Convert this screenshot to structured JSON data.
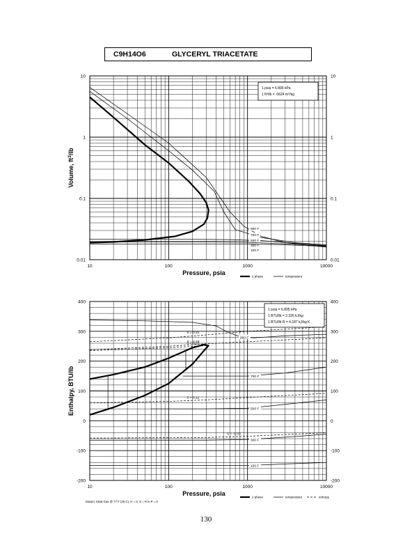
{
  "header": {
    "formula": "C9H14O6",
    "name": "GLYCERYL TRIACETATE"
  },
  "page_number": "130",
  "footer_note": "Datum: Ideal Gas @ 77 F (25 C), H = 0, S = R ln P = 0",
  "chart_data": [
    {
      "type": "line",
      "title": "",
      "xlabel": "Pressure,  psia",
      "ylabel": "Volume, ft^3/lb",
      "xscale": "log",
      "yscale": "log",
      "xlim": [
        10,
        10000
      ],
      "ylim": [
        0.01,
        10
      ],
      "x_ticks": [
        "10",
        "100",
        "1000",
        "10000"
      ],
      "y_ticks": [
        "0.01",
        "0.1",
        "1",
        "10"
      ],
      "grid": true,
      "conversion_box": [
        "1 psia  =  6.895 kPa",
        "1 ft^3/lb  =  .0624 m^3/kg"
      ],
      "legend": {
        "placement": "bottom-right",
        "entries": [
          "2 phase",
          "temperature"
        ]
      },
      "series": [
        {
          "kind": "2 phase",
          "label": "",
          "points": [
            [
              10,
              4.5
            ],
            [
              20,
              2.1
            ],
            [
              50,
              0.75
            ],
            [
              100,
              0.38
            ],
            [
              180,
              0.19
            ],
            [
              250,
              0.12
            ],
            [
              300,
              0.085
            ],
            [
              320,
              0.065
            ],
            [
              310,
              0.048
            ],
            [
              280,
              0.038
            ],
            [
              200,
              0.029
            ],
            [
              120,
              0.024
            ],
            [
              50,
              0.021
            ],
            [
              20,
              0.0195
            ],
            [
              10,
              0.019
            ]
          ]
        },
        {
          "kind": "temperature",
          "label": "900 F",
          "points": [
            [
              10,
              6.5
            ],
            [
              30,
              2.4
            ],
            [
              100,
              0.8
            ],
            [
              300,
              0.22
            ],
            [
              600,
              0.06
            ],
            [
              900,
              0.035
            ],
            [
              1500,
              0.024
            ],
            [
              3000,
              0.019
            ],
            [
              10000,
              0.016
            ]
          ]
        },
        {
          "kind": "temperature",
          "label": "700 F",
          "points": [
            [
              10,
              5.6
            ],
            [
              30,
              2.0
            ],
            [
              100,
              0.6
            ],
            [
              200,
              0.29
            ],
            [
              380,
              0.13
            ],
            [
              500,
              0.06
            ],
            [
              700,
              0.031
            ],
            [
              1500,
              0.023
            ],
            [
              4000,
              0.019
            ],
            [
              10000,
              0.0175
            ]
          ]
        },
        {
          "kind": "temperature",
          "label": "500 F",
          "points": [
            [
              10,
              0.0215
            ],
            [
              200,
              0.0215
            ],
            [
              600,
              0.0213
            ],
            [
              1500,
              0.0205
            ],
            [
              4000,
              0.0185
            ],
            [
              10000,
              0.017
            ]
          ]
        },
        {
          "kind": "temperature",
          "label": "300 F",
          "points": [
            [
              10,
              0.0195
            ],
            [
              300,
              0.0195
            ],
            [
              1000,
              0.0192
            ],
            [
              3000,
              0.0182
            ],
            [
              10000,
              0.0168
            ]
          ]
        },
        {
          "kind": "temperature",
          "label": "100 F",
          "points": [
            [
              10,
              0.018
            ],
            [
              1000,
              0.018
            ],
            [
              3000,
              0.0175
            ],
            [
              10000,
              0.0165
            ]
          ]
        }
      ]
    },
    {
      "type": "line",
      "title": "",
      "xlabel": "Pressure,  psia",
      "ylabel": "Enthalpy, BTU/lb",
      "xscale": "log",
      "xlim": [
        10,
        10000
      ],
      "ylim": [
        -200,
        400
      ],
      "x_ticks": [
        "10",
        "100",
        "1000",
        "10000"
      ],
      "y_ticks": [
        "-200",
        "-100",
        "0",
        "100",
        "200",
        "300",
        "400"
      ],
      "grid": true,
      "conversion_box": [
        "1 psia  =  6.895 kPa",
        "1 BTU/lb  =  2.326 kJ/kg",
        "1 BTU/lb R  =  4.187 kJ/kg K"
      ],
      "legend": {
        "placement": "bottom-right",
        "entries": [
          "2 phase",
          "temperature",
          "entropy"
        ]
      },
      "series": [
        {
          "kind": "2 phase",
          "label": "",
          "points": [
            [
              10,
              20
            ],
            [
              20,
              45
            ],
            [
              50,
              85
            ],
            [
              100,
              125
            ],
            [
              200,
              190
            ],
            [
              280,
              235
            ],
            [
              320,
              252
            ],
            [
              280,
              255
            ],
            [
              200,
              245
            ],
            [
              100,
              210
            ],
            [
              50,
              180
            ],
            [
              20,
              155
            ],
            [
              10,
              140
            ]
          ]
        },
        {
          "kind": "temperature",
          "label": "900 F",
          "points": [
            [
              10,
              338
            ],
            [
              50,
              335
            ],
            [
              200,
              330
            ],
            [
              400,
              318
            ],
            [
              550,
              298
            ],
            [
              800,
              282
            ],
            [
              1200,
              278
            ],
            [
              3000,
              285
            ],
            [
              10000,
              290
            ]
          ]
        },
        {
          "kind": "temperature",
          "label": "700 F",
          "points": [
            [
              150,
              150
            ],
            [
              300,
              150
            ],
            [
              1000,
              150
            ],
            [
              3000,
              160
            ],
            [
              10000,
              180
            ]
          ]
        },
        {
          "kind": "temperature",
          "label": "500 F",
          "points": [
            [
              60,
              40
            ],
            [
              300,
              40
            ],
            [
              1000,
              42
            ],
            [
              3000,
              55
            ],
            [
              10000,
              70
            ]
          ]
        },
        {
          "kind": "temperature",
          "label": "300 F",
          "points": [
            [
              10,
              -65
            ],
            [
              300,
              -65
            ],
            [
              1000,
              -63
            ],
            [
              3000,
              -55
            ],
            [
              10000,
              -45
            ]
          ]
        },
        {
          "kind": "temperature",
          "label": "100 F",
          "points": [
            [
              10,
              -150
            ],
            [
              1000,
              -150
            ],
            [
              3000,
              -145
            ],
            [
              10000,
              -140
            ]
          ]
        },
        {
          "kind": "entropy",
          "label": "S = 0.31",
          "points": [
            [
              10,
              265
            ],
            [
              100,
              278
            ],
            [
              300,
              288
            ],
            [
              1000,
              300
            ],
            [
              10000,
              315
            ]
          ]
        },
        {
          "kind": "entropy",
          "label": "S = 0.29",
          "points": [
            [
              10,
              238
            ],
            [
              100,
              250
            ],
            [
              300,
              258
            ],
            [
              1000,
              265
            ],
            [
              10000,
              278
            ]
          ]
        },
        {
          "kind": "entropy",
          "label": "S = 0.27",
          "points": [
            [
              10,
              235
            ],
            [
              100,
              245
            ],
            [
              300,
              252
            ]
          ]
        },
        {
          "kind": "entropy",
          "label": "S = 0.12",
          "points": [
            [
              10,
              60
            ],
            [
              100,
              65
            ],
            [
              300,
              70
            ],
            [
              1000,
              78
            ],
            [
              10000,
              92
            ]
          ]
        },
        {
          "kind": "entropy",
          "label": "S = -0.03",
          "points": [
            [
              10,
              -58
            ],
            [
              300,
              -56
            ],
            [
              1000,
              -52
            ],
            [
              10000,
              -40
            ]
          ]
        }
      ]
    }
  ]
}
